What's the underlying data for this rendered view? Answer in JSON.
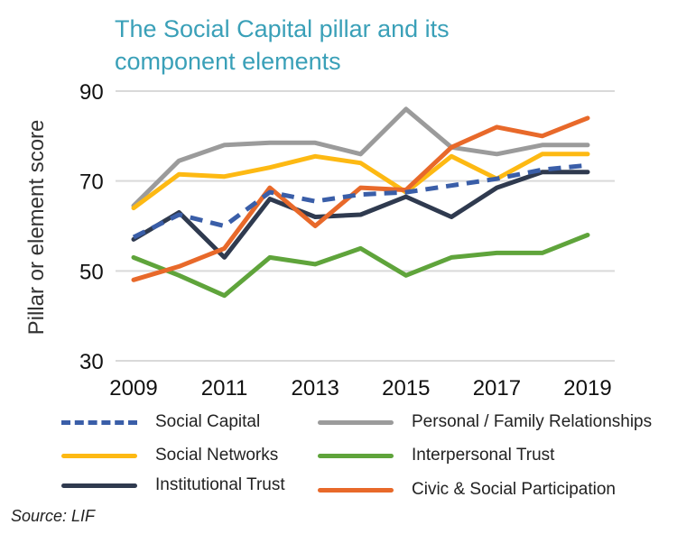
{
  "title_line1": "The Social Capital pillar and its",
  "title_line2": "component elements",
  "source": "Source: LIF",
  "colors": {
    "social_capital": "#3a5ea8",
    "personal": "#9b9b9b",
    "social_networks": "#fdb913",
    "interpersonal": "#5fa43b",
    "institutional": "#2f3a4f",
    "civic": "#e8692a",
    "grid": "#d9d9d9"
  },
  "chart_data": {
    "type": "line",
    "title": "The Social Capital pillar and its component elements",
    "xlabel": "",
    "ylabel": "Pillar or element score",
    "ylim": [
      30,
      90
    ],
    "yticks": [
      "30",
      "50",
      "70",
      "90"
    ],
    "xticks": [
      "2009",
      "2011",
      "2013",
      "2015",
      "2017",
      "2019"
    ],
    "x": [
      2009,
      2010,
      2011,
      2012,
      2013,
      2014,
      2015,
      2016,
      2017,
      2018,
      2019
    ],
    "grid": "horizontal",
    "legend_position": "bottom",
    "series": [
      {
        "name": "Social Capital",
        "key": "social_capital",
        "dashed": true,
        "values": [
          57.5,
          62.5,
          60,
          67.5,
          65.5,
          67,
          67.5,
          69,
          70.5,
          72.5,
          73.5
        ]
      },
      {
        "name": "Personal / Family Relationships",
        "key": "personal",
        "dashed": false,
        "values": [
          64.5,
          74.5,
          78,
          78.5,
          78.5,
          76,
          86,
          77.5,
          76,
          78,
          78
        ]
      },
      {
        "name": "Social Networks",
        "key": "social_networks",
        "dashed": false,
        "values": [
          64,
          71.5,
          71,
          73,
          75.5,
          74,
          67.5,
          75.5,
          70.5,
          76,
          76
        ]
      },
      {
        "name": "Interpersonal Trust",
        "key": "interpersonal",
        "dashed": false,
        "values": [
          53,
          49,
          44.5,
          53,
          51.5,
          55,
          49,
          53,
          54,
          54,
          58
        ]
      },
      {
        "name": "Institutional Trust",
        "key": "institutional",
        "dashed": false,
        "values": [
          57,
          63,
          53,
          66,
          62,
          62.5,
          66.5,
          62,
          68.5,
          72,
          72
        ]
      },
      {
        "name": "Civic & Social Participation",
        "key": "civic",
        "dashed": false,
        "values": [
          48,
          51,
          55,
          68.5,
          60,
          68.5,
          68,
          77.5,
          82,
          80,
          84
        ]
      }
    ]
  }
}
